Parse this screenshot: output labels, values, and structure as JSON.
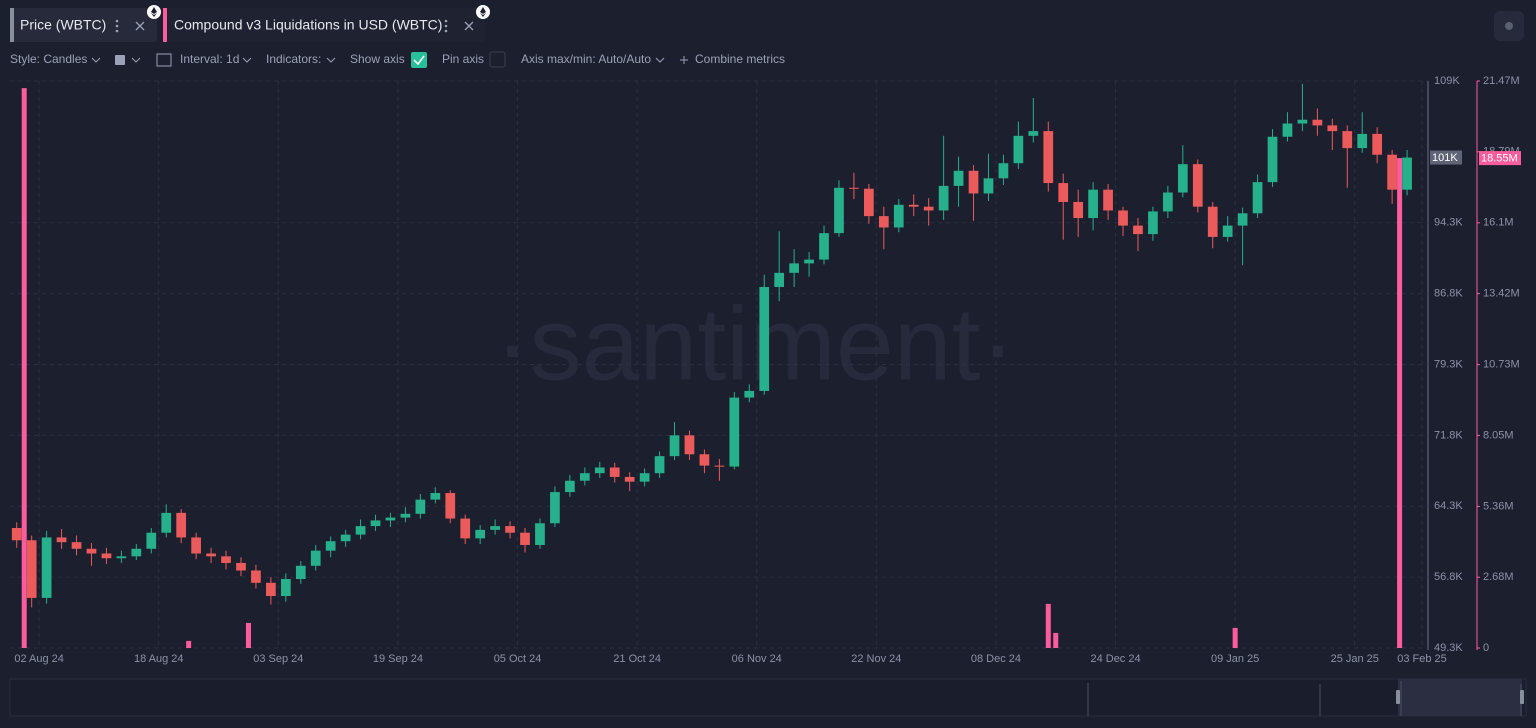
{
  "ui": {
    "tabs": [
      "Price (WBTC)",
      "Compound v3 Liquidations in USD (WBTC)"
    ],
    "toolbar": {
      "style": "Style: Candles",
      "interval": "Interval: 1d",
      "indicators": "Indicators:",
      "show_axis": "Show axis",
      "pin_axis": "Pin axis",
      "axis_range": "Axis max/min: Auto/Auto",
      "combine": "Combine metrics"
    },
    "watermark": "·santiment·"
  },
  "chart_data": {
    "type": "candlestick",
    "xlim": [
      -3.9,
      185.8
    ],
    "xticks": [
      {
        "value": 0,
        "label": "02 Aug 24"
      },
      {
        "value": 16,
        "label": "18 Aug 24"
      },
      {
        "value": 32,
        "label": "03 Sep 24"
      },
      {
        "value": 48,
        "label": "19 Sep 24"
      },
      {
        "value": 64,
        "label": "05 Oct 24"
      },
      {
        "value": 80,
        "label": "21 Oct 24"
      },
      {
        "value": 96,
        "label": "06 Nov 24"
      },
      {
        "value": 112,
        "label": "22 Nov 24"
      },
      {
        "value": 128,
        "label": "08 Dec 24"
      },
      {
        "value": 144,
        "label": "24 Dec 24"
      },
      {
        "value": 160,
        "label": "09 Jan 25"
      },
      {
        "value": 176,
        "label": "25 Jan 25"
      },
      {
        "value": 185,
        "label": "03 Feb 25"
      }
    ],
    "ylim": [
      49300,
      109300
    ],
    "yticks": [
      {
        "value": 49300,
        "label": "49.3K"
      },
      {
        "value": 56800,
        "label": "56.8K"
      },
      {
        "value": 64300,
        "label": "64.3K"
      },
      {
        "value": 71800,
        "label": "71.8K"
      },
      {
        "value": 79300,
        "label": "79.3K"
      },
      {
        "value": 86800,
        "label": "86.8K"
      },
      {
        "value": 94300,
        "label": "94.3K"
      },
      {
        "value": 109300,
        "label": "109K"
      }
    ],
    "y2lim": [
      0,
      21470000
    ],
    "y2ticks": [
      0,
      {
        "value": 2680000,
        "label": "2.68M"
      },
      {
        "value": 5360000,
        "label": "5.36M"
      },
      {
        "value": 8050000,
        "label": "8.05M"
      },
      {
        "value": 10730000,
        "label": "10.73M"
      },
      {
        "value": 13420000,
        "label": "13.42M"
      },
      {
        "value": 16100000,
        "label": "16.1M"
      },
      {
        "value": 18790000,
        "label": "18.79M"
      },
      {
        "value": 21470000,
        "label": "21.47M"
      }
    ],
    "grid": true,
    "series": [
      {
        "name": "Price (WBTC)",
        "type": "candlestick",
        "color": "#8a8f9e",
        "up_color": "#27b08c",
        "down_color": "#ec5b5b",
        "last_label": "101K",
        "x": [
          -3,
          -1,
          1,
          3,
          5,
          7,
          9,
          11,
          13,
          15,
          17,
          19,
          21,
          23,
          25,
          27,
          29,
          31,
          33,
          35,
          37,
          39,
          41,
          43,
          45,
          47,
          49,
          51,
          53,
          55,
          57,
          59,
          61,
          63,
          65,
          67,
          69,
          71,
          73,
          75,
          77,
          79,
          81,
          83,
          85,
          87,
          89,
          91,
          93,
          95,
          97,
          99,
          101,
          103,
          105,
          107,
          109,
          111,
          113,
          115,
          117,
          119,
          121,
          123,
          125,
          127,
          129,
          131,
          133,
          135,
          137,
          139,
          141,
          143,
          145,
          147,
          149,
          151,
          153,
          155,
          157,
          159,
          161,
          163,
          165,
          167,
          169,
          171,
          173,
          175,
          177,
          179,
          181,
          183
        ],
        "open": [
          62000,
          60700,
          54600,
          61000,
          60500,
          59800,
          59300,
          58800,
          59000,
          59800,
          61500,
          63600,
          61000,
          59300,
          59000,
          58300,
          57500,
          56200,
          54800,
          56600,
          58000,
          59600,
          60600,
          61300,
          62200,
          62800,
          63100,
          63500,
          65000,
          65700,
          63000,
          60900,
          61800,
          62200,
          61500,
          60200,
          62500,
          65800,
          67000,
          67800,
          68400,
          67400,
          66900,
          67800,
          69600,
          71800,
          69800,
          68600,
          68500,
          75800,
          76500,
          87500,
          89000,
          90000,
          90400,
          93200,
          98000,
          97900,
          95000,
          93800,
          96200,
          96000,
          95600,
          98200,
          99800,
          97400,
          99000,
          100600,
          103500,
          104000,
          98500,
          96500,
          94800,
          97800,
          95600,
          94000,
          93100,
          95500,
          97500,
          100500,
          96000,
          92800,
          94000,
          95300,
          98600,
          103400,
          104800,
          105200,
          104600,
          104000,
          102200,
          103700,
          101500,
          97800
        ],
        "high": [
          62600,
          61200,
          61700,
          61900,
          61200,
          60400,
          59900,
          59600,
          60300,
          62000,
          64500,
          64000,
          61500,
          59900,
          59600,
          58900,
          58100,
          56800,
          57200,
          58500,
          60200,
          61100,
          61800,
          62900,
          63400,
          63600,
          64200,
          65600,
          66300,
          66000,
          63400,
          62300,
          62900,
          62700,
          62000,
          63000,
          66400,
          67600,
          68400,
          69000,
          68900,
          67900,
          68300,
          70100,
          73200,
          72300,
          70300,
          69300,
          76400,
          77200,
          88800,
          93400,
          91500,
          91200,
          94000,
          98800,
          99600,
          98400,
          96000,
          96800,
          97300,
          96900,
          103500,
          101300,
          100400,
          101600,
          101500,
          105000,
          107500,
          105000,
          99500,
          97800,
          98600,
          98400,
          96000,
          94800,
          96000,
          98200,
          102500,
          101000,
          96500,
          95000,
          95900,
          99400,
          104200,
          106000,
          109000,
          106400,
          105300,
          104600,
          106000,
          104400,
          102000,
          102000
        ],
        "low": [
          59900,
          53600,
          54000,
          59800,
          59100,
          58000,
          58200,
          58300,
          58600,
          59300,
          61000,
          60400,
          58700,
          58300,
          57600,
          56900,
          55600,
          53900,
          54200,
          56100,
          57500,
          58900,
          60000,
          60800,
          61700,
          62100,
          62600,
          63000,
          64600,
          62500,
          60300,
          60300,
          61300,
          60900,
          59400,
          59800,
          62100,
          65300,
          66500,
          67300,
          66800,
          65900,
          66400,
          67300,
          69200,
          69200,
          67800,
          67000,
          68200,
          75300,
          76100,
          86000,
          87500,
          88600,
          89900,
          92800,
          96800,
          94200,
          91500,
          93300,
          95000,
          94000,
          94600,
          96000,
          94500,
          96600,
          98300,
          100000,
          102800,
          97600,
          92500,
          92800,
          93500,
          94600,
          92900,
          91300,
          92400,
          94800,
          97000,
          95400,
          91600,
          92300,
          89800,
          94800,
          98100,
          102900,
          104000,
          103500,
          102000,
          98000,
          101700,
          100600,
          96300,
          97200
        ],
        "close": [
          60700,
          54600,
          61000,
          60500,
          59800,
          59300,
          58800,
          59000,
          59800,
          61500,
          63600,
          61000,
          59300,
          59000,
          58300,
          57500,
          56200,
          54800,
          56600,
          58000,
          59600,
          60600,
          61300,
          62200,
          62800,
          63100,
          63500,
          65000,
          65700,
          63000,
          60900,
          61800,
          62200,
          61500,
          60200,
          62500,
          65800,
          67000,
          67800,
          68400,
          67400,
          66900,
          67800,
          69600,
          71800,
          69800,
          68600,
          68500,
          75800,
          76500,
          87500,
          89000,
          90000,
          90400,
          93200,
          98000,
          97900,
          95000,
          93800,
          96200,
          96000,
          95600,
          98200,
          99800,
          97400,
          99000,
          100600,
          103500,
          104000,
          98500,
          96500,
          94800,
          97800,
          95600,
          94000,
          93100,
          95500,
          97500,
          100500,
          96000,
          92800,
          94000,
          95300,
          98600,
          103400,
          104800,
          105200,
          104600,
          104000,
          102200,
          103700,
          101500,
          97800,
          101200
        ]
      },
      {
        "name": "Compound v3 Liquidations in USD (WBTC)",
        "type": "bar",
        "axis": "y2",
        "color": "#ff5c9d",
        "last_label": "18.55M",
        "x": [
          -2,
          20,
          28,
          135,
          136,
          160,
          182
        ],
        "values": [
          21200000,
          270000,
          950000,
          1670000,
          570000,
          760000,
          18550000
        ]
      }
    ]
  }
}
